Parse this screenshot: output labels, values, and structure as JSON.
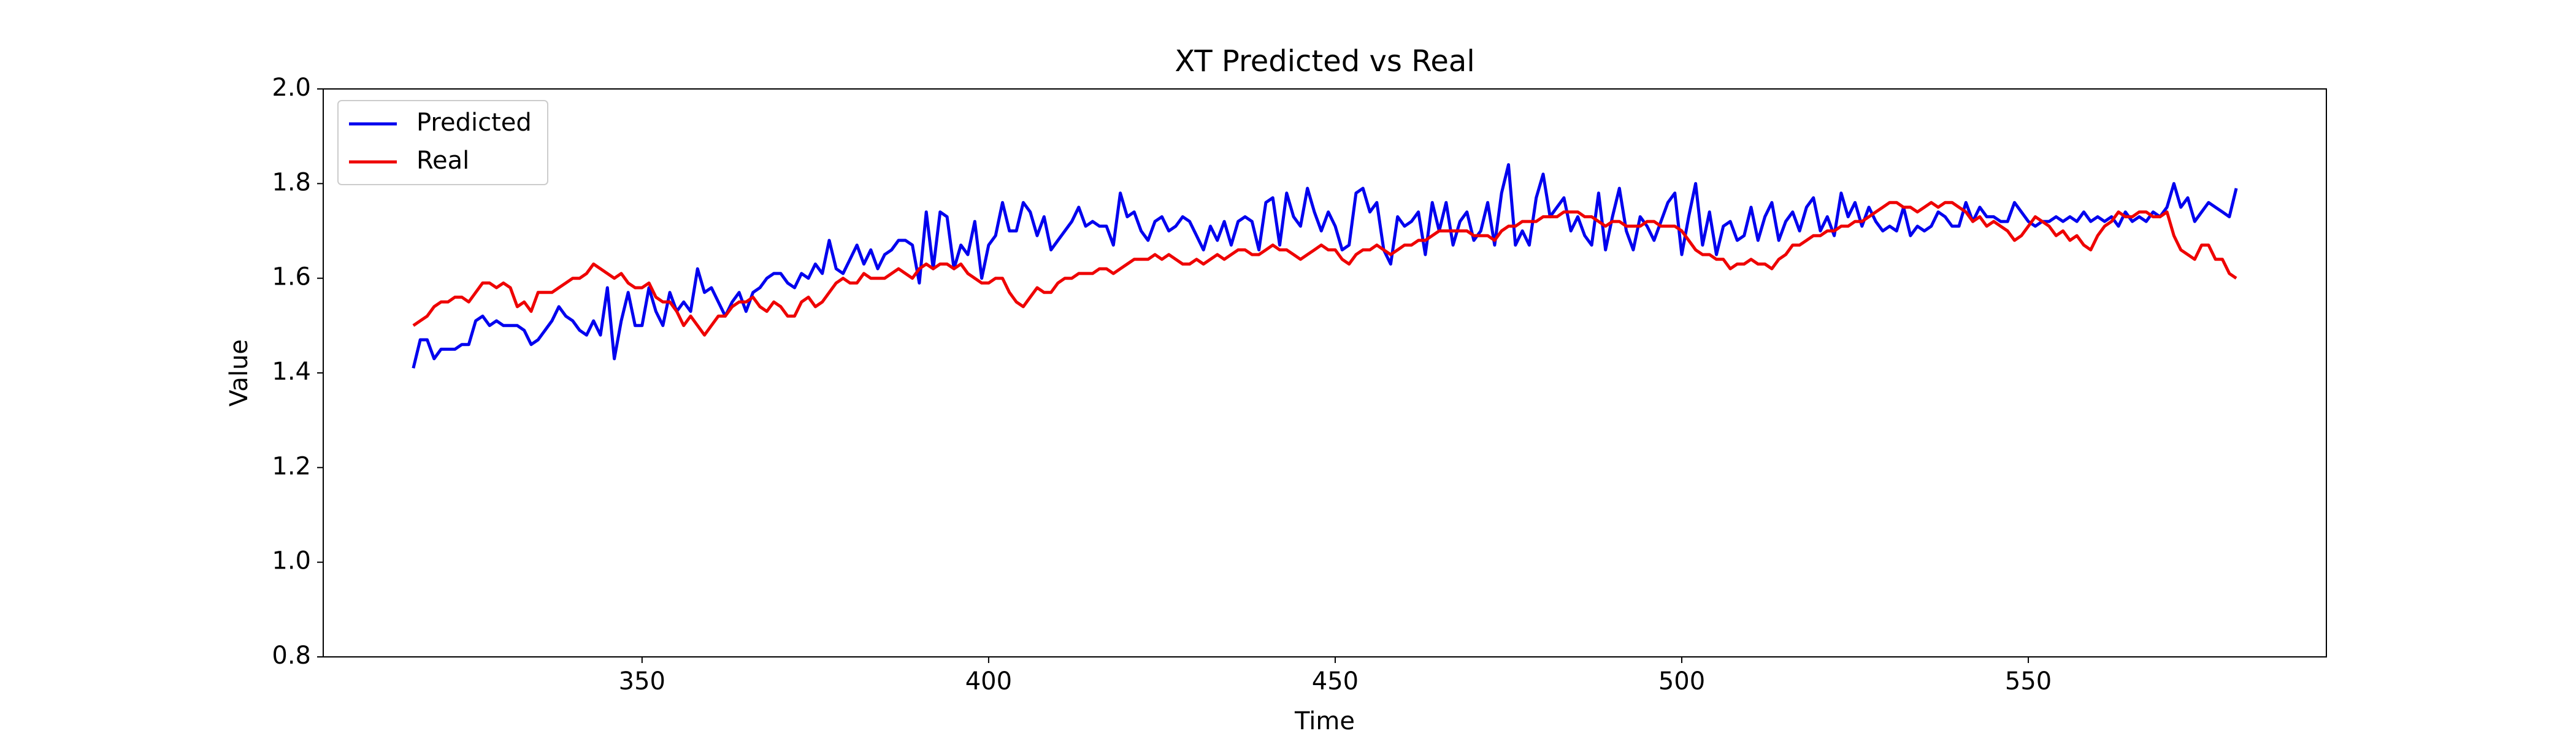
{
  "chart_data": {
    "type": "line",
    "title": "XT Predicted vs Real",
    "xlabel": "Time",
    "ylabel": "Value",
    "x": [
      317,
      318,
      319,
      320,
      321,
      322,
      323,
      324,
      325,
      326,
      327,
      328,
      329,
      330,
      331,
      332,
      333,
      334,
      335,
      336,
      337,
      338,
      339,
      340,
      341,
      342,
      343,
      344,
      345,
      346,
      347,
      348,
      349,
      350,
      351,
      352,
      353,
      354,
      355,
      356,
      357,
      358,
      359,
      360,
      361,
      362,
      363,
      364,
      365,
      366,
      367,
      368,
      369,
      370,
      371,
      372,
      373,
      374,
      375,
      376,
      377,
      378,
      379,
      380,
      381,
      382,
      383,
      384,
      385,
      386,
      387,
      388,
      389,
      390,
      391,
      392,
      393,
      394,
      395,
      396,
      397,
      398,
      399,
      400,
      401,
      402,
      403,
      404,
      405,
      406,
      407,
      408,
      409,
      410,
      411,
      412,
      413,
      414,
      415,
      416,
      417,
      418,
      419,
      420,
      421,
      422,
      423,
      424,
      425,
      426,
      427,
      428,
      429,
      430,
      431,
      432,
      433,
      434,
      435,
      436,
      437,
      438,
      439,
      440,
      441,
      442,
      443,
      444,
      445,
      446,
      447,
      448,
      449,
      450,
      451,
      452,
      453,
      454,
      455,
      456,
      457,
      458,
      459,
      460,
      461,
      462,
      463,
      464,
      465,
      466,
      467,
      468,
      469,
      470,
      471,
      472,
      473,
      474,
      475,
      476,
      477,
      478,
      479,
      480,
      481,
      482,
      483,
      484,
      485,
      486,
      487,
      488,
      489,
      490,
      491,
      492,
      493,
      494,
      495,
      496,
      497,
      498,
      499,
      500,
      501,
      502,
      503,
      504,
      505,
      506,
      507,
      508,
      509,
      510,
      511,
      512,
      513,
      514,
      515,
      516,
      517,
      518,
      519,
      520,
      521,
      522,
      523,
      524,
      525,
      526,
      527,
      528,
      529,
      530,
      531,
      532,
      533,
      534,
      535,
      536,
      537,
      538,
      539,
      540,
      541,
      542,
      543,
      544,
      545,
      546,
      547,
      548,
      549,
      550,
      551,
      552,
      553,
      554,
      555,
      556,
      557,
      558,
      559,
      560,
      561,
      562,
      563,
      564,
      565,
      566,
      567,
      568,
      569,
      570,
      571,
      572,
      573,
      574,
      575,
      576,
      577,
      578,
      579,
      580
    ],
    "series": [
      {
        "name": "Predicted",
        "color": "#0000ee",
        "values": [
          1.41,
          1.47,
          1.47,
          1.43,
          1.45,
          1.45,
          1.45,
          1.46,
          1.46,
          1.51,
          1.52,
          1.5,
          1.51,
          1.5,
          1.5,
          1.5,
          1.49,
          1.46,
          1.47,
          1.49,
          1.51,
          1.54,
          1.52,
          1.51,
          1.49,
          1.48,
          1.51,
          1.48,
          1.58,
          1.43,
          1.51,
          1.57,
          1.5,
          1.5,
          1.58,
          1.53,
          1.5,
          1.57,
          1.53,
          1.55,
          1.53,
          1.62,
          1.57,
          1.58,
          1.55,
          1.52,
          1.55,
          1.57,
          1.53,
          1.57,
          1.58,
          1.6,
          1.61,
          1.61,
          1.59,
          1.58,
          1.61,
          1.6,
          1.63,
          1.61,
          1.68,
          1.62,
          1.61,
          1.64,
          1.67,
          1.63,
          1.66,
          1.62,
          1.65,
          1.66,
          1.68,
          1.68,
          1.67,
          1.59,
          1.74,
          1.62,
          1.74,
          1.73,
          1.62,
          1.67,
          1.65,
          1.72,
          1.6,
          1.67,
          1.69,
          1.76,
          1.7,
          1.7,
          1.76,
          1.74,
          1.69,
          1.73,
          1.66,
          1.68,
          1.7,
          1.72,
          1.75,
          1.71,
          1.72,
          1.71,
          1.71,
          1.67,
          1.78,
          1.73,
          1.74,
          1.7,
          1.68,
          1.72,
          1.73,
          1.7,
          1.71,
          1.73,
          1.72,
          1.69,
          1.66,
          1.71,
          1.68,
          1.72,
          1.67,
          1.72,
          1.73,
          1.72,
          1.66,
          1.76,
          1.77,
          1.67,
          1.78,
          1.73,
          1.71,
          1.79,
          1.74,
          1.7,
          1.74,
          1.71,
          1.66,
          1.67,
          1.78,
          1.79,
          1.74,
          1.76,
          1.66,
          1.63,
          1.73,
          1.71,
          1.72,
          1.74,
          1.65,
          1.76,
          1.7,
          1.76,
          1.67,
          1.72,
          1.74,
          1.68,
          1.7,
          1.76,
          1.67,
          1.78,
          1.84,
          1.67,
          1.7,
          1.67,
          1.77,
          1.82,
          1.73,
          1.75,
          1.77,
          1.7,
          1.73,
          1.69,
          1.67,
          1.78,
          1.66,
          1.73,
          1.79,
          1.7,
          1.66,
          1.73,
          1.71,
          1.68,
          1.72,
          1.76,
          1.78,
          1.65,
          1.73,
          1.8,
          1.67,
          1.74,
          1.65,
          1.71,
          1.72,
          1.68,
          1.69,
          1.75,
          1.68,
          1.73,
          1.76,
          1.68,
          1.72,
          1.74,
          1.7,
          1.75,
          1.77,
          1.7,
          1.73,
          1.69,
          1.78,
          1.73,
          1.76,
          1.71,
          1.75,
          1.72,
          1.7,
          1.71,
          1.7,
          1.75,
          1.69,
          1.71,
          1.7,
          1.71,
          1.74,
          1.73,
          1.71,
          1.71,
          1.76,
          1.72,
          1.75,
          1.73,
          1.73,
          1.72,
          1.72,
          1.76,
          1.74,
          1.72,
          1.71,
          1.72,
          1.72,
          1.73,
          1.72,
          1.73,
          1.72,
          1.74,
          1.72,
          1.73,
          1.72,
          1.73,
          1.71,
          1.74,
          1.72,
          1.73,
          1.72,
          1.74,
          1.73,
          1.75,
          1.8,
          1.75,
          1.77,
          1.72,
          1.74,
          1.76,
          1.75,
          1.74,
          1.73,
          1.79
        ]
      },
      {
        "name": "Real",
        "color": "#ee0000",
        "values": [
          1.5,
          1.51,
          1.52,
          1.54,
          1.55,
          1.55,
          1.56,
          1.56,
          1.55,
          1.57,
          1.59,
          1.59,
          1.58,
          1.59,
          1.58,
          1.54,
          1.55,
          1.53,
          1.57,
          1.57,
          1.57,
          1.58,
          1.59,
          1.6,
          1.6,
          1.61,
          1.63,
          1.62,
          1.61,
          1.6,
          1.61,
          1.59,
          1.58,
          1.58,
          1.59,
          1.56,
          1.55,
          1.55,
          1.53,
          1.5,
          1.52,
          1.5,
          1.48,
          1.5,
          1.52,
          1.52,
          1.54,
          1.55,
          1.55,
          1.56,
          1.54,
          1.53,
          1.55,
          1.54,
          1.52,
          1.52,
          1.55,
          1.56,
          1.54,
          1.55,
          1.57,
          1.59,
          1.6,
          1.59,
          1.59,
          1.61,
          1.6,
          1.6,
          1.6,
          1.61,
          1.62,
          1.61,
          1.6,
          1.62,
          1.63,
          1.62,
          1.63,
          1.63,
          1.62,
          1.63,
          1.61,
          1.6,
          1.59,
          1.59,
          1.6,
          1.6,
          1.57,
          1.55,
          1.54,
          1.56,
          1.58,
          1.57,
          1.57,
          1.59,
          1.6,
          1.6,
          1.61,
          1.61,
          1.61,
          1.62,
          1.62,
          1.61,
          1.62,
          1.63,
          1.64,
          1.64,
          1.64,
          1.65,
          1.64,
          1.65,
          1.64,
          1.63,
          1.63,
          1.64,
          1.63,
          1.64,
          1.65,
          1.64,
          1.65,
          1.66,
          1.66,
          1.65,
          1.65,
          1.66,
          1.67,
          1.66,
          1.66,
          1.65,
          1.64,
          1.65,
          1.66,
          1.67,
          1.66,
          1.66,
          1.64,
          1.63,
          1.65,
          1.66,
          1.66,
          1.67,
          1.66,
          1.65,
          1.66,
          1.67,
          1.67,
          1.68,
          1.68,
          1.69,
          1.7,
          1.7,
          1.7,
          1.7,
          1.7,
          1.69,
          1.69,
          1.69,
          1.68,
          1.7,
          1.71,
          1.71,
          1.72,
          1.72,
          1.72,
          1.73,
          1.73,
          1.73,
          1.74,
          1.74,
          1.74,
          1.73,
          1.73,
          1.72,
          1.71,
          1.72,
          1.72,
          1.71,
          1.71,
          1.71,
          1.72,
          1.72,
          1.71,
          1.71,
          1.71,
          1.7,
          1.68,
          1.66,
          1.65,
          1.65,
          1.64,
          1.64,
          1.62,
          1.63,
          1.63,
          1.64,
          1.63,
          1.63,
          1.62,
          1.64,
          1.65,
          1.67,
          1.67,
          1.68,
          1.69,
          1.69,
          1.7,
          1.7,
          1.71,
          1.71,
          1.72,
          1.72,
          1.73,
          1.74,
          1.75,
          1.76,
          1.76,
          1.75,
          1.75,
          1.74,
          1.75,
          1.76,
          1.75,
          1.76,
          1.76,
          1.75,
          1.74,
          1.72,
          1.73,
          1.71,
          1.72,
          1.71,
          1.7,
          1.68,
          1.69,
          1.71,
          1.73,
          1.72,
          1.71,
          1.69,
          1.7,
          1.68,
          1.69,
          1.67,
          1.66,
          1.69,
          1.71,
          1.72,
          1.74,
          1.73,
          1.73,
          1.74,
          1.74,
          1.73,
          1.73,
          1.74,
          1.69,
          1.66,
          1.65,
          1.64,
          1.67,
          1.67,
          1.64,
          1.64,
          1.61,
          1.6
        ]
      }
    ],
    "xlim": [
      304,
      593
    ],
    "xticks": [
      350,
      400,
      450,
      500,
      550
    ],
    "ylim": [
      0.8,
      2.0
    ],
    "yticks": [
      0.8,
      {
        "value": 1,
        "label": "1.0"
      },
      1.2,
      1.4,
      1.6,
      1.8,
      {
        "value": 2,
        "label": "2.0"
      }
    ],
    "grid": false,
    "legend": "upper left"
  }
}
